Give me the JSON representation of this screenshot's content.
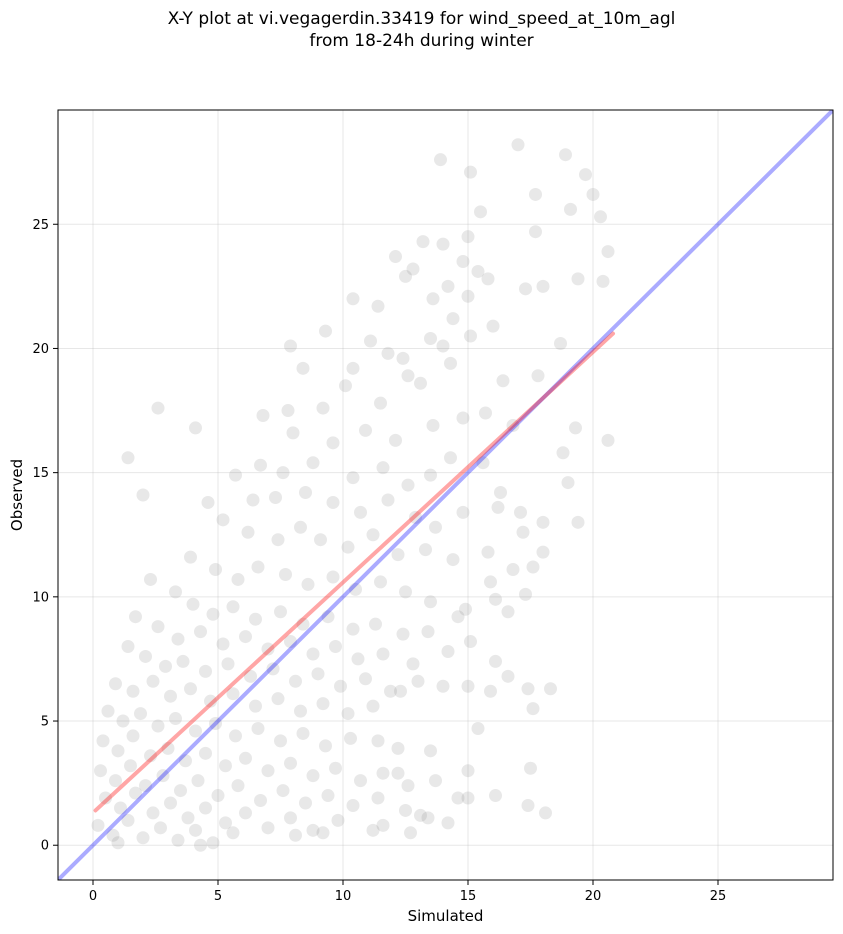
{
  "chart_data": {
    "type": "scatter",
    "title_lines": [
      "X-Y plot at vi.vegagerdin.33419 for wind_speed_at_10m_agl",
      "from 18-24h during winter"
    ],
    "xlabel": "Simulated",
    "ylabel": "Observed",
    "xlim": [
      -1.4,
      29.6
    ],
    "ylim": [
      -1.4,
      29.6
    ],
    "xticks": [
      0,
      5,
      10,
      15,
      20,
      25
    ],
    "yticks": [
      0,
      5,
      10,
      15,
      20,
      25
    ],
    "grid": true,
    "point_color": "#808080",
    "point_opacity": 0.18,
    "reference_line": {
      "label": "1:1",
      "color": "#0000ff",
      "x": [
        -1.4,
        29.6
      ],
      "y": [
        -1.4,
        29.6
      ]
    },
    "fit_line": {
      "color": "#ff0000",
      "x": [
        0.1,
        20.8
      ],
      "y": [
        1.4,
        20.6
      ]
    },
    "points": [
      [
        17.0,
        28.2
      ],
      [
        13.9,
        27.6
      ],
      [
        18.9,
        27.8
      ],
      [
        19.7,
        27.0
      ],
      [
        15.1,
        27.1
      ],
      [
        20.0,
        26.2
      ],
      [
        17.7,
        26.2
      ],
      [
        19.1,
        25.6
      ],
      [
        15.5,
        25.5
      ],
      [
        20.3,
        25.3
      ],
      [
        17.7,
        24.7
      ],
      [
        14.0,
        24.2
      ],
      [
        13.2,
        24.3
      ],
      [
        15.0,
        24.5
      ],
      [
        20.6,
        23.9
      ],
      [
        12.1,
        23.7
      ],
      [
        14.8,
        23.5
      ],
      [
        12.8,
        23.2
      ],
      [
        15.4,
        23.1
      ],
      [
        12.5,
        22.9
      ],
      [
        15.8,
        22.8
      ],
      [
        19.4,
        22.8
      ],
      [
        20.4,
        22.7
      ],
      [
        17.3,
        22.4
      ],
      [
        18.0,
        22.5
      ],
      [
        13.6,
        22.0
      ],
      [
        14.2,
        22.5
      ],
      [
        15.0,
        22.1
      ],
      [
        10.4,
        22.0
      ],
      [
        11.4,
        21.7
      ],
      [
        14.4,
        21.2
      ],
      [
        16.0,
        20.9
      ],
      [
        11.1,
        20.3
      ],
      [
        12.4,
        19.6
      ],
      [
        13.5,
        20.4
      ],
      [
        14.0,
        20.1
      ],
      [
        15.1,
        20.5
      ],
      [
        9.3,
        20.7
      ],
      [
        7.9,
        20.1
      ],
      [
        8.4,
        19.2
      ],
      [
        10.4,
        19.2
      ],
      [
        11.8,
        19.8
      ],
      [
        14.3,
        19.4
      ],
      [
        13.1,
        18.6
      ],
      [
        12.6,
        18.9
      ],
      [
        16.4,
        18.7
      ],
      [
        17.8,
        18.9
      ],
      [
        18.7,
        20.2
      ],
      [
        10.1,
        18.5
      ],
      [
        11.5,
        17.8
      ],
      [
        9.2,
        17.6
      ],
      [
        7.8,
        17.5
      ],
      [
        6.8,
        17.3
      ],
      [
        8.0,
        16.6
      ],
      [
        9.6,
        16.2
      ],
      [
        10.9,
        16.7
      ],
      [
        12.1,
        16.3
      ],
      [
        13.6,
        16.9
      ],
      [
        14.8,
        17.2
      ],
      [
        15.7,
        17.4
      ],
      [
        16.8,
        16.9
      ],
      [
        19.3,
        16.8
      ],
      [
        20.6,
        16.3
      ],
      [
        2.6,
        17.6
      ],
      [
        4.1,
        16.8
      ],
      [
        6.7,
        15.3
      ],
      [
        7.6,
        15.0
      ],
      [
        8.8,
        15.4
      ],
      [
        10.4,
        14.8
      ],
      [
        11.6,
        15.2
      ],
      [
        12.6,
        14.5
      ],
      [
        13.5,
        14.9
      ],
      [
        14.3,
        15.6
      ],
      [
        15.6,
        15.4
      ],
      [
        16.3,
        14.2
      ],
      [
        18.8,
        15.8
      ],
      [
        1.4,
        15.6
      ],
      [
        5.7,
        14.9
      ],
      [
        6.4,
        13.9
      ],
      [
        7.3,
        14.0
      ],
      [
        8.5,
        14.2
      ],
      [
        9.6,
        13.8
      ],
      [
        10.7,
        13.4
      ],
      [
        11.8,
        13.9
      ],
      [
        12.9,
        13.2
      ],
      [
        13.7,
        12.8
      ],
      [
        14.8,
        13.4
      ],
      [
        16.2,
        13.6
      ],
      [
        17.1,
        13.4
      ],
      [
        18.0,
        13.0
      ],
      [
        19.4,
        13.0
      ],
      [
        19.0,
        14.6
      ],
      [
        2.0,
        14.1
      ],
      [
        4.6,
        13.8
      ],
      [
        5.2,
        13.1
      ],
      [
        6.2,
        12.6
      ],
      [
        7.4,
        12.3
      ],
      [
        8.3,
        12.8
      ],
      [
        9.1,
        12.3
      ],
      [
        10.2,
        12.0
      ],
      [
        11.2,
        12.5
      ],
      [
        12.2,
        11.7
      ],
      [
        13.3,
        11.9
      ],
      [
        14.4,
        11.5
      ],
      [
        15.8,
        11.8
      ],
      [
        16.8,
        11.1
      ],
      [
        17.6,
        11.2
      ],
      [
        3.9,
        11.6
      ],
      [
        4.9,
        11.1
      ],
      [
        5.8,
        10.7
      ],
      [
        6.6,
        11.2
      ],
      [
        7.7,
        10.9
      ],
      [
        8.6,
        10.5
      ],
      [
        9.6,
        10.8
      ],
      [
        10.5,
        10.3
      ],
      [
        11.5,
        10.6
      ],
      [
        12.5,
        10.2
      ],
      [
        13.5,
        9.8
      ],
      [
        14.9,
        9.5
      ],
      [
        16.6,
        9.4
      ],
      [
        17.3,
        10.1
      ],
      [
        2.3,
        10.7
      ],
      [
        3.3,
        10.2
      ],
      [
        4.0,
        9.7
      ],
      [
        4.8,
        9.3
      ],
      [
        5.6,
        9.6
      ],
      [
        6.5,
        9.1
      ],
      [
        7.5,
        9.4
      ],
      [
        8.4,
        8.9
      ],
      [
        9.4,
        9.2
      ],
      [
        10.4,
        8.7
      ],
      [
        11.3,
        8.9
      ],
      [
        12.4,
        8.5
      ],
      [
        13.4,
        8.6
      ],
      [
        15.1,
        8.2
      ],
      [
        1.7,
        9.2
      ],
      [
        2.6,
        8.8
      ],
      [
        3.4,
        8.3
      ],
      [
        4.3,
        8.6
      ],
      [
        5.2,
        8.1
      ],
      [
        6.1,
        8.4
      ],
      [
        7.0,
        7.9
      ],
      [
        7.9,
        8.2
      ],
      [
        8.8,
        7.7
      ],
      [
        9.7,
        8.0
      ],
      [
        10.6,
        7.5
      ],
      [
        11.6,
        7.7
      ],
      [
        12.8,
        7.3
      ],
      [
        14.2,
        7.8
      ],
      [
        1.4,
        8.0
      ],
      [
        2.1,
        7.6
      ],
      [
        2.9,
        7.2
      ],
      [
        3.6,
        7.4
      ],
      [
        4.5,
        7.0
      ],
      [
        5.4,
        7.3
      ],
      [
        6.3,
        6.8
      ],
      [
        7.2,
        7.1
      ],
      [
        8.1,
        6.6
      ],
      [
        9.0,
        6.9
      ],
      [
        9.9,
        6.4
      ],
      [
        10.9,
        6.7
      ],
      [
        11.9,
        6.2
      ],
      [
        13.0,
        6.6
      ],
      [
        16.6,
        6.8
      ],
      [
        17.4,
        6.3
      ],
      [
        18.3,
        6.3
      ],
      [
        0.9,
        6.5
      ],
      [
        1.6,
        6.2
      ],
      [
        2.4,
        6.6
      ],
      [
        3.1,
        6.0
      ],
      [
        3.9,
        6.3
      ],
      [
        4.7,
        5.8
      ],
      [
        5.6,
        6.1
      ],
      [
        6.5,
        5.6
      ],
      [
        7.4,
        5.9
      ],
      [
        8.3,
        5.4
      ],
      [
        9.2,
        5.7
      ],
      [
        10.2,
        5.3
      ],
      [
        11.2,
        5.6
      ],
      [
        12.3,
        6.2
      ],
      [
        15.9,
        6.2
      ],
      [
        17.6,
        5.5
      ],
      [
        0.6,
        5.4
      ],
      [
        1.2,
        5.0
      ],
      [
        1.9,
        5.3
      ],
      [
        2.6,
        4.8
      ],
      [
        3.3,
        5.1
      ],
      [
        4.1,
        4.6
      ],
      [
        4.9,
        4.9
      ],
      [
        5.7,
        4.4
      ],
      [
        6.6,
        4.7
      ],
      [
        7.5,
        4.2
      ],
      [
        8.4,
        4.5
      ],
      [
        9.3,
        4.0
      ],
      [
        10.3,
        4.3
      ],
      [
        11.4,
        4.2
      ],
      [
        12.2,
        3.9
      ],
      [
        13.5,
        3.8
      ],
      [
        0.4,
        4.2
      ],
      [
        1.0,
        3.8
      ],
      [
        1.6,
        4.4
      ],
      [
        2.3,
        3.6
      ],
      [
        3.0,
        3.9
      ],
      [
        3.7,
        3.4
      ],
      [
        4.5,
        3.7
      ],
      [
        5.3,
        3.2
      ],
      [
        6.1,
        3.5
      ],
      [
        7.0,
        3.0
      ],
      [
        7.9,
        3.3
      ],
      [
        8.8,
        2.8
      ],
      [
        9.7,
        3.1
      ],
      [
        10.7,
        2.6
      ],
      [
        11.6,
        2.9
      ],
      [
        12.6,
        2.4
      ],
      [
        13.7,
        2.6
      ],
      [
        15.0,
        3.0
      ],
      [
        17.5,
        3.1
      ],
      [
        0.3,
        3.0
      ],
      [
        0.9,
        2.6
      ],
      [
        1.5,
        3.2
      ],
      [
        2.1,
        2.4
      ],
      [
        2.8,
        2.8
      ],
      [
        3.5,
        2.2
      ],
      [
        4.2,
        2.6
      ],
      [
        5.0,
        2.0
      ],
      [
        5.8,
        2.4
      ],
      [
        6.7,
        1.8
      ],
      [
        7.6,
        2.2
      ],
      [
        8.5,
        1.7
      ],
      [
        9.4,
        2.0
      ],
      [
        10.4,
        1.6
      ],
      [
        11.4,
        1.9
      ],
      [
        12.5,
        1.4
      ],
      [
        13.4,
        1.1
      ],
      [
        14.6,
        1.9
      ],
      [
        16.1,
        2.0
      ],
      [
        0.5,
        1.9
      ],
      [
        1.1,
        1.5
      ],
      [
        1.7,
        2.1
      ],
      [
        2.4,
        1.3
      ],
      [
        3.1,
        1.7
      ],
      [
        3.8,
        1.1
      ],
      [
        4.5,
        1.5
      ],
      [
        5.3,
        0.9
      ],
      [
        6.1,
        1.3
      ],
      [
        7.0,
        0.7
      ],
      [
        7.9,
        1.1
      ],
      [
        8.8,
        0.6
      ],
      [
        9.8,
        1.0
      ],
      [
        11.2,
        0.6
      ],
      [
        12.7,
        0.5
      ],
      [
        13.1,
        1.2
      ],
      [
        14.2,
        0.9
      ],
      [
        15.0,
        1.9
      ],
      [
        17.4,
        1.6
      ],
      [
        18.1,
        1.3
      ],
      [
        0.2,
        0.8
      ],
      [
        0.8,
        0.4
      ],
      [
        1.4,
        1.0
      ],
      [
        2.0,
        0.3
      ],
      [
        2.7,
        0.7
      ],
      [
        3.4,
        0.2
      ],
      [
        4.1,
        0.6
      ],
      [
        4.8,
        0.1
      ],
      [
        5.6,
        0.5
      ],
      [
        4.3,
        0.0
      ],
      [
        1.0,
        0.1
      ],
      [
        8.1,
        0.4
      ],
      [
        9.2,
        0.5
      ],
      [
        11.6,
        0.8
      ],
      [
        12.2,
        2.9
      ],
      [
        15.4,
        4.7
      ],
      [
        14.0,
        6.4
      ],
      [
        15.0,
        6.4
      ],
      [
        16.1,
        7.4
      ],
      [
        14.6,
        9.2
      ],
      [
        16.1,
        9.9
      ],
      [
        18.0,
        11.8
      ],
      [
        15.9,
        10.6
      ],
      [
        17.2,
        12.6
      ]
    ]
  }
}
